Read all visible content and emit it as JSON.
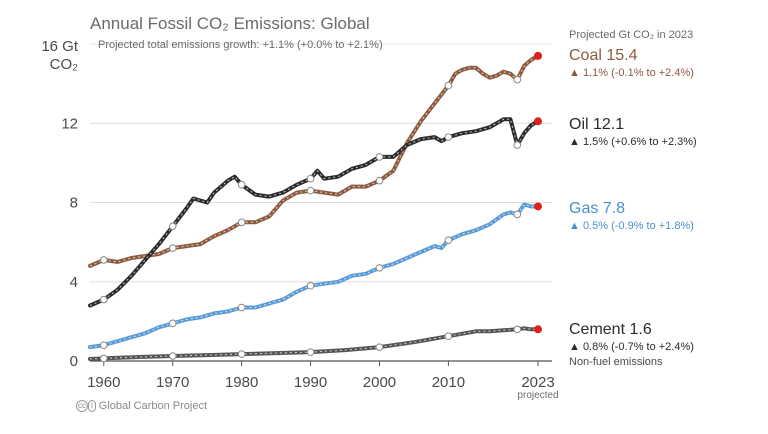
{
  "chart_data": {
    "type": "line",
    "title": "Annual Fossil CO₂ Emissions: Global",
    "annotation": "Projected total emissions growth: +1.1% (+0.0% to +2.1%)",
    "y_unit_top": "16 Gt",
    "y_unit_bottom": "CO₂",
    "ylim": [
      0,
      16
    ],
    "xlim": [
      1958,
      2023
    ],
    "y_ticks": [
      "0",
      "4",
      "8",
      "12"
    ],
    "x_ticks": [
      "1960",
      "1970",
      "1980",
      "1990",
      "2000",
      "2010",
      "2023"
    ],
    "x_tick_note": "projected",
    "right_header": "Projected Gt CO₂ in 2023",
    "grid": true,
    "legend_placement": "right",
    "series": [
      {
        "name": "Coal",
        "label": "Coal 15.4",
        "change": "▲ 1.1% (-0.1% to +2.4%)",
        "color": "#8c5a3c",
        "label_color": "#8c5a3c",
        "x": [
          1958,
          1960,
          1962,
          1964,
          1966,
          1968,
          1970,
          1972,
          1974,
          1976,
          1978,
          1980,
          1982,
          1984,
          1986,
          1988,
          1990,
          1992,
          1994,
          1996,
          1998,
          2000,
          2002,
          2004,
          2006,
          2008,
          2010,
          2011,
          2012,
          2013,
          2014,
          2015,
          2016,
          2017,
          2018,
          2019,
          2020,
          2021,
          2022,
          2023
        ],
        "values": [
          4.8,
          5.1,
          5.0,
          5.2,
          5.3,
          5.4,
          5.7,
          5.8,
          5.9,
          6.3,
          6.6,
          7.0,
          7.0,
          7.3,
          8.1,
          8.5,
          8.6,
          8.5,
          8.4,
          8.8,
          8.8,
          9.1,
          9.6,
          11.0,
          12.1,
          13.0,
          13.9,
          14.5,
          14.7,
          14.8,
          14.8,
          14.5,
          14.3,
          14.4,
          14.6,
          14.5,
          14.2,
          14.9,
          15.2,
          15.4
        ],
        "markers": [
          1960,
          1970,
          1980,
          1990,
          2000,
          2010,
          2020
        ],
        "projected": 2023
      },
      {
        "name": "Oil",
        "label": "Oil 12.1",
        "change": "▲ 1.5% (+0.6% to +2.3%)",
        "color": "#2b2b2b",
        "label_color": "#2b2b2b",
        "x": [
          1958,
          1960,
          1962,
          1964,
          1966,
          1968,
          1970,
          1972,
          1973,
          1974,
          1975,
          1976,
          1978,
          1979,
          1980,
          1982,
          1984,
          1986,
          1988,
          1990,
          1991,
          1992,
          1994,
          1996,
          1998,
          2000,
          2002,
          2004,
          2006,
          2008,
          2009,
          2010,
          2012,
          2014,
          2016,
          2018,
          2019,
          2020,
          2021,
          2022,
          2023
        ],
        "values": [
          2.8,
          3.1,
          3.6,
          4.3,
          5.1,
          5.9,
          6.8,
          7.7,
          8.2,
          8.1,
          8.0,
          8.5,
          9.1,
          9.3,
          8.9,
          8.4,
          8.3,
          8.5,
          8.9,
          9.2,
          9.6,
          9.2,
          9.3,
          9.7,
          9.9,
          10.3,
          10.3,
          10.9,
          11.2,
          11.3,
          11.1,
          11.3,
          11.5,
          11.6,
          11.8,
          12.2,
          12.2,
          10.9,
          11.5,
          11.9,
          12.1
        ],
        "markers": [
          1960,
          1970,
          1980,
          1990,
          2000,
          2010,
          2020
        ],
        "projected": 2023
      },
      {
        "name": "Gas",
        "label": "Gas 7.8",
        "change": "▲ 0.5% (-0.9% to +1.8%)",
        "color": "#5b9bd5",
        "label_color": "#4a90d0",
        "x": [
          1958,
          1960,
          1962,
          1964,
          1966,
          1968,
          1970,
          1972,
          1974,
          1976,
          1978,
          1980,
          1982,
          1984,
          1986,
          1988,
          1990,
          1992,
          1994,
          1996,
          1998,
          2000,
          2002,
          2004,
          2006,
          2008,
          2009,
          2010,
          2012,
          2014,
          2016,
          2018,
          2019,
          2020,
          2021,
          2022,
          2023
        ],
        "values": [
          0.7,
          0.8,
          1.0,
          1.2,
          1.4,
          1.7,
          1.9,
          2.1,
          2.2,
          2.4,
          2.5,
          2.7,
          2.7,
          2.9,
          3.1,
          3.5,
          3.8,
          3.9,
          4.0,
          4.3,
          4.4,
          4.7,
          4.9,
          5.2,
          5.5,
          5.8,
          5.7,
          6.1,
          6.4,
          6.6,
          6.9,
          7.4,
          7.5,
          7.4,
          7.9,
          7.8,
          7.8
        ],
        "markers": [
          1960,
          1970,
          1980,
          1990,
          2000,
          2010,
          2020
        ],
        "projected": 2023
      },
      {
        "name": "Cement",
        "label": "Cement 1.6",
        "change": "▲ 0.8% (-0.7% to +2.4%)",
        "note": "Non-fuel emissions",
        "color": "#555555",
        "label_color": "#2b2b2b",
        "x": [
          1958,
          1960,
          1965,
          1970,
          1975,
          1980,
          1985,
          1990,
          1995,
          2000,
          2005,
          2010,
          2014,
          2016,
          2018,
          2020,
          2021,
          2022,
          2023
        ],
        "values": [
          0.1,
          0.13,
          0.2,
          0.25,
          0.3,
          0.35,
          0.4,
          0.45,
          0.55,
          0.7,
          0.95,
          1.25,
          1.5,
          1.5,
          1.55,
          1.6,
          1.65,
          1.6,
          1.6
        ],
        "markers": [
          1960,
          1970,
          1980,
          1990,
          2000,
          2010,
          2020
        ],
        "projected": 2023
      }
    ]
  },
  "footer": "Global Carbon Project",
  "footer_icon": "creative-commons-icon"
}
